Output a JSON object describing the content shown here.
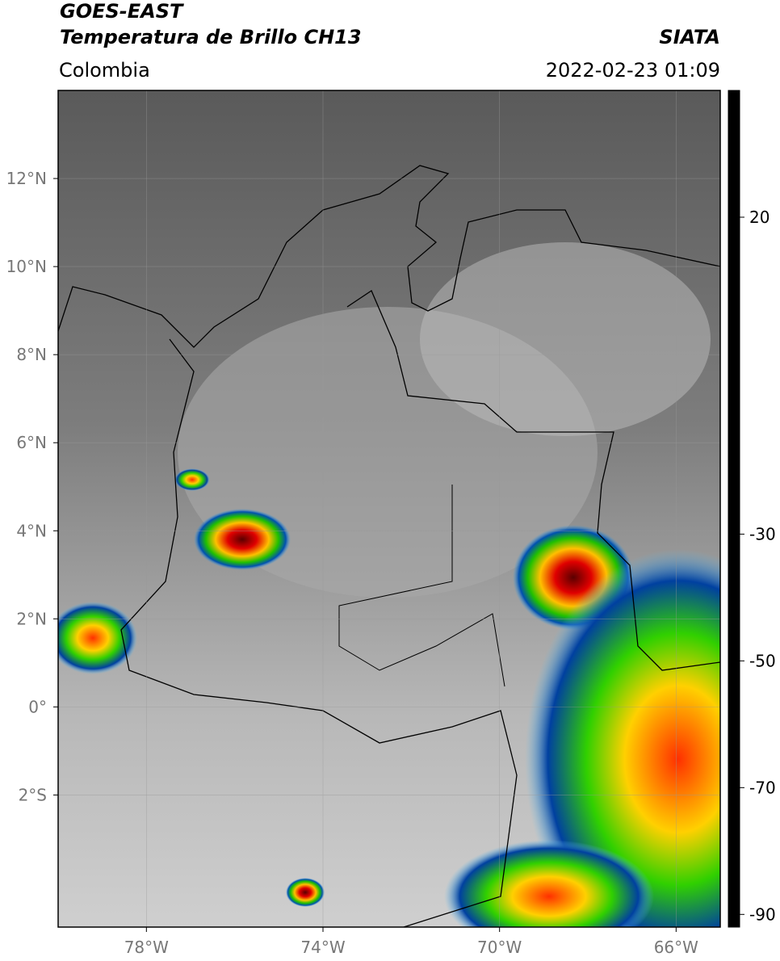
{
  "header": {
    "satellite": "GOES-EAST",
    "product": "Temperatura de Brillo CH13",
    "source": "SIATA",
    "region": "Colombia",
    "timestamp": "2022-02-23 01:09"
  },
  "map": {
    "xlim": [
      -80,
      -65
    ],
    "ylim": [
      -5,
      14
    ],
    "xticks": [
      {
        "value": -78,
        "label": "78°W"
      },
      {
        "value": -74,
        "label": "74°W"
      },
      {
        "value": -70,
        "label": "70°W"
      },
      {
        "value": -66,
        "label": "66°W"
      }
    ],
    "yticks": [
      {
        "value": -2,
        "label": "2°S"
      },
      {
        "value": 0,
        "label": "0°"
      },
      {
        "value": 2,
        "label": "2°N"
      },
      {
        "value": 4,
        "label": "4°N"
      },
      {
        "value": 6,
        "label": "6°N"
      },
      {
        "value": 8,
        "label": "8°N"
      },
      {
        "value": 10,
        "label": "10°N"
      },
      {
        "value": 12,
        "label": "12°N"
      }
    ],
    "grid": true
  },
  "colorbar": {
    "lim": [
      -92,
      40
    ],
    "ticks": [
      20,
      -30,
      -50,
      -70,
      -90
    ],
    "colormap": [
      {
        "value": 40,
        "color": "#000000"
      },
      {
        "value": 20,
        "color": "#6a6a6a"
      },
      {
        "value": -18,
        "color": "#ffffff"
      },
      {
        "value": -19,
        "color": "#00d8f0"
      },
      {
        "value": -25,
        "color": "#0070c8"
      },
      {
        "value": -30,
        "color": "#002a90"
      },
      {
        "value": -35,
        "color": "#008060"
      },
      {
        "value": -40,
        "color": "#20d000"
      },
      {
        "value": -45,
        "color": "#b0e000"
      },
      {
        "value": -50,
        "color": "#ffe000"
      },
      {
        "value": -55,
        "color": "#ff8000"
      },
      {
        "value": -60,
        "color": "#e00000"
      },
      {
        "value": -65,
        "color": "#800000"
      },
      {
        "value": -70,
        "color": "#000000"
      },
      {
        "value": -74,
        "color": "#666666"
      },
      {
        "value": -79,
        "color": "#d0d0d0"
      },
      {
        "value": -81,
        "color": "#ff60d0"
      },
      {
        "value": -88,
        "color": "#8a1a8a"
      },
      {
        "value": -89.5,
        "color": "#ffffff"
      },
      {
        "value": -92,
        "color": "#ffffff"
      }
    ]
  }
}
